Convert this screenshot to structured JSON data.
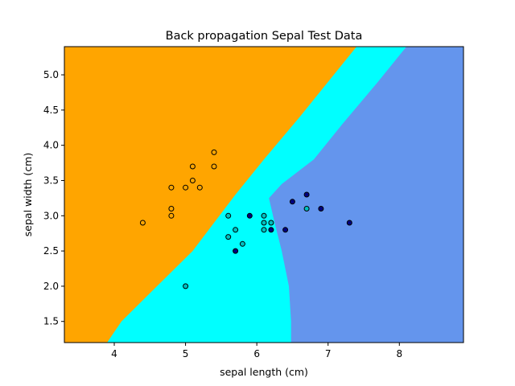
{
  "chart_data": {
    "type": "scatter",
    "title": "Back propagation Sepal Test Data",
    "xlabel": "sepal length (cm)",
    "ylabel": "sepal width (cm)",
    "xlim": [
      3.3,
      8.9
    ],
    "ylim": [
      1.2,
      5.4
    ],
    "xticks": [
      4,
      5,
      6,
      7,
      8
    ],
    "yticks": [
      1.5,
      2.0,
      2.5,
      3.0,
      3.5,
      4.0,
      4.5,
      5.0
    ],
    "xtick_labels": [
      "4",
      "5",
      "6",
      "7",
      "8"
    ],
    "ytick_labels": [
      "1.5",
      "2.0",
      "2.5",
      "3.0",
      "3.5",
      "4.0",
      "4.5",
      "5.0"
    ],
    "grid": false,
    "decision_regions": {
      "colors": [
        "#ffa500",
        "#00ffff",
        "#6495ed"
      ],
      "boundary_orange_cyan": [
        [
          3.9,
          1.2
        ],
        [
          4.1,
          1.5
        ],
        [
          4.6,
          2.0
        ],
        [
          5.1,
          2.5
        ],
        [
          5.4,
          2.9
        ],
        [
          5.7,
          3.3
        ],
        [
          6.1,
          3.8
        ],
        [
          6.6,
          4.4
        ],
        [
          7.4,
          5.4
        ]
      ],
      "boundary_cyan_blue": [
        [
          6.48,
          1.2
        ],
        [
          6.48,
          1.5
        ],
        [
          6.45,
          2.0
        ],
        [
          6.35,
          2.5
        ],
        [
          6.25,
          2.9
        ],
        [
          6.17,
          3.25
        ],
        [
          6.35,
          3.45
        ],
        [
          6.8,
          3.8
        ],
        [
          7.2,
          4.3
        ],
        [
          7.7,
          4.9
        ],
        [
          8.1,
          5.4
        ]
      ]
    },
    "series": [
      {
        "color": "#ffa500",
        "points": [
          [
            4.4,
            2.9
          ],
          [
            4.8,
            3.0
          ],
          [
            4.8,
            3.1
          ],
          [
            4.8,
            3.4
          ],
          [
            5.0,
            3.4
          ],
          [
            5.1,
            3.5
          ],
          [
            5.1,
            3.7
          ],
          [
            5.2,
            3.4
          ],
          [
            5.4,
            3.7
          ],
          [
            5.4,
            3.9
          ]
        ]
      },
      {
        "color": "#00c0c0",
        "points": [
          [
            5.0,
            2.0
          ],
          [
            5.6,
            3.0
          ],
          [
            5.6,
            2.7
          ],
          [
            5.7,
            2.8
          ],
          [
            5.8,
            2.6
          ],
          [
            6.1,
            3.0
          ],
          [
            6.1,
            2.9
          ],
          [
            6.1,
            2.8
          ],
          [
            6.2,
            2.9
          ],
          [
            6.7,
            3.1
          ]
        ]
      },
      {
        "color": "#000080",
        "points": [
          [
            5.7,
            2.5
          ],
          [
            5.9,
            3.0
          ],
          [
            6.2,
            2.8
          ],
          [
            6.4,
            2.8
          ],
          [
            6.5,
            3.2
          ],
          [
            6.7,
            3.3
          ],
          [
            6.9,
            3.1
          ],
          [
            7.3,
            2.9
          ]
        ]
      }
    ]
  }
}
